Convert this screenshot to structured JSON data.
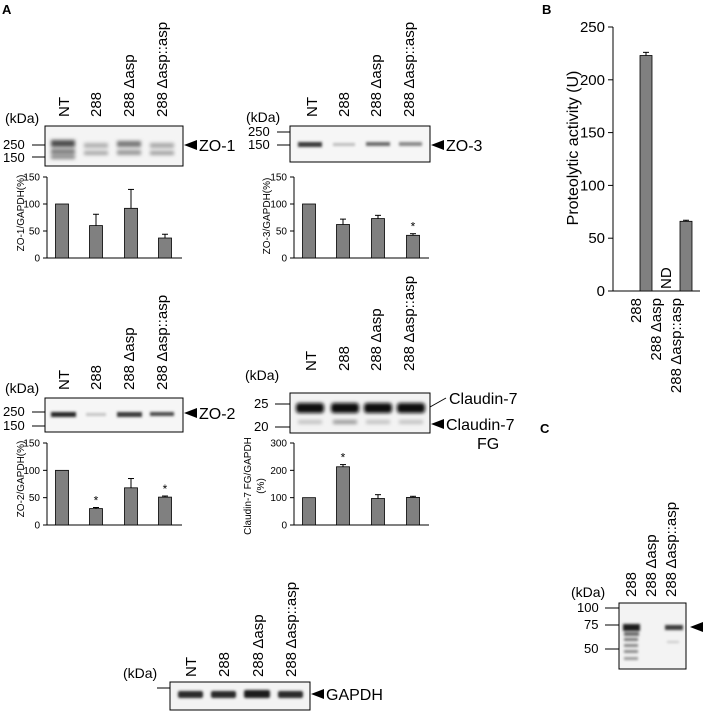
{
  "panels": {
    "a": "A",
    "b": "B",
    "c": "C"
  },
  "kda": "(kDa)",
  "lanes4": [
    "NT",
    "288",
    "288 Δasp",
    "288 Δasp::asp"
  ],
  "zo1": {
    "markers": [
      "250",
      "150"
    ],
    "label": "ZO-1",
    "ylabel": "ZO-1/GAPDH(%)",
    "ticks": [
      "150",
      "100",
      "50",
      "0"
    ],
    "values": [
      100,
      60,
      92,
      37
    ],
    "errors": [
      0,
      21,
      35,
      7
    ],
    "sig": [
      false,
      false,
      false,
      false
    ]
  },
  "zo3": {
    "markers": [
      "250",
      "150"
    ],
    "label": "ZO-3",
    "ylabel": "ZO-3/GAPDH(%)",
    "ticks": [
      "150",
      "100",
      "50",
      "0"
    ],
    "values": [
      100,
      62,
      73,
      42
    ],
    "errors": [
      0,
      10,
      6,
      3
    ],
    "sig": [
      false,
      false,
      false,
      true
    ]
  },
  "zo2": {
    "markers": [
      "250",
      "150"
    ],
    "label": "ZO-2",
    "ylabel": "ZO-2/GAPDH(%)",
    "ticks": [
      "150",
      "100",
      "50",
      "0"
    ],
    "values": [
      100,
      30,
      68,
      51
    ],
    "errors": [
      0,
      2,
      17,
      2
    ],
    "sig": [
      false,
      true,
      false,
      true
    ]
  },
  "cld": {
    "markers": [
      "25",
      "20"
    ],
    "label_top": "Claudin-7",
    "label_fg1": "Claudin-7",
    "label_fg2": "FG",
    "ylabel1": "Claudin-7 FG/GAPDH",
    "ylabel2": "(%)",
    "ticks": [
      "300",
      "200",
      "100",
      "0"
    ],
    "values": [
      100,
      213,
      97,
      101
    ],
    "errors": [
      0,
      8,
      14,
      4
    ],
    "sig": [
      false,
      true,
      false,
      false
    ]
  },
  "gapdh": {
    "label": "GAPDH"
  },
  "panel_b": {
    "ylabel": "Proteolytic activity (U)",
    "ticks": [
      "250",
      "200",
      "150",
      "100",
      "50",
      "0"
    ],
    "categories": [
      "288",
      "288 Δasp",
      "288 Δasp::asp"
    ],
    "nd": "ND"
  },
  "panel_c": {
    "lanes": [
      "288",
      "288 Δasp",
      "288 Δasp::asp"
    ],
    "markers": [
      "100",
      "75",
      "50"
    ]
  },
  "chart_data": [
    {
      "type": "bar",
      "ylabel": "ZO-1/GAPDH(%)",
      "categories": [
        "NT",
        "288",
        "288 Δasp",
        "288 Δasp::asp"
      ],
      "values": [
        100,
        60,
        92,
        37
      ],
      "errors": [
        0,
        21,
        35,
        7
      ],
      "ylim": [
        0,
        150
      ]
    },
    {
      "type": "bar",
      "ylabel": "ZO-3/GAPDH(%)",
      "categories": [
        "NT",
        "288",
        "288 Δasp",
        "288 Δasp::asp"
      ],
      "values": [
        100,
        62,
        73,
        42
      ],
      "errors": [
        0,
        10,
        6,
        3
      ],
      "ylim": [
        0,
        150
      ]
    },
    {
      "type": "bar",
      "ylabel": "ZO-2/GAPDH(%)",
      "categories": [
        "NT",
        "288",
        "288 Δasp",
        "288 Δasp::asp"
      ],
      "values": [
        100,
        30,
        68,
        51
      ],
      "errors": [
        0,
        2,
        17,
        2
      ],
      "ylim": [
        0,
        150
      ]
    },
    {
      "type": "bar",
      "ylabel": "Claudin-7 FG/GAPDH (%)",
      "categories": [
        "NT",
        "288",
        "288 Δasp",
        "288 Δasp::asp"
      ],
      "values": [
        100,
        213,
        97,
        101
      ],
      "errors": [
        0,
        8,
        14,
        4
      ],
      "ylim": [
        0,
        300
      ]
    },
    {
      "type": "bar",
      "ylabel": "Proteolytic activity (U)",
      "categories": [
        "288",
        "288 Δasp",
        "288 Δasp::asp"
      ],
      "values": [
        223,
        0,
        66
      ],
      "errors": [
        3,
        0,
        1
      ],
      "ylim": [
        0,
        250
      ]
    }
  ]
}
